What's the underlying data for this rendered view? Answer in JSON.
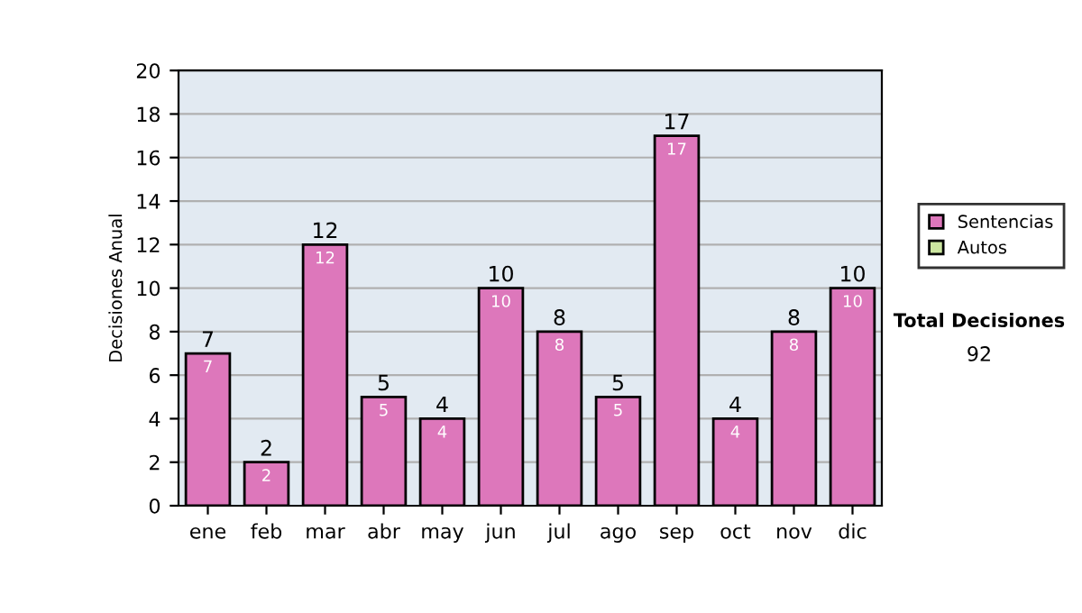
{
  "chart_data": {
    "type": "bar",
    "stacked": true,
    "ylabel": "Decisiones Anual",
    "categories": [
      "ene",
      "feb",
      "mar",
      "abr",
      "may",
      "jun",
      "jul",
      "ago",
      "sep",
      "oct",
      "nov",
      "dic"
    ],
    "series": [
      {
        "name": "Sentencias",
        "color": "#dd77bb",
        "values": [
          7,
          2,
          12,
          5,
          4,
          10,
          8,
          5,
          17,
          4,
          8,
          10
        ]
      },
      {
        "name": "Autos",
        "color": "#cce6a0",
        "values": [
          null,
          null,
          null,
          null,
          null,
          null,
          null,
          null,
          null,
          null,
          null,
          null
        ]
      }
    ],
    "totals": [
      "7",
      "2",
      "12",
      "5",
      "4",
      "10",
      "8",
      "5",
      "17",
      "4",
      "8",
      "10"
    ],
    "data_labels": true,
    "ylim": [
      0,
      20
    ],
    "yticks": [
      0,
      2,
      4,
      6,
      8,
      10,
      12,
      14,
      16,
      18,
      20
    ],
    "grid": "y",
    "legend": "right",
    "annotations": [
      "Total Decisiones",
      "92"
    ]
  }
}
